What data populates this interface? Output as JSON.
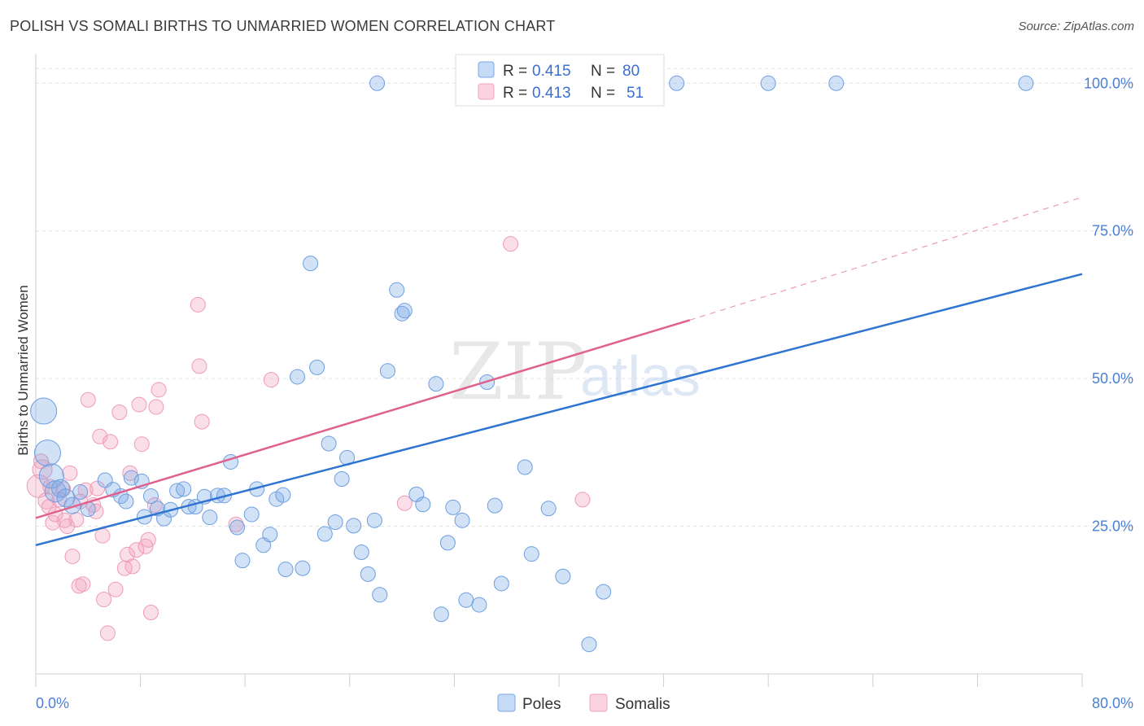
{
  "title": "POLISH VS SOMALI BIRTHS TO UNMARRIED WOMEN CORRELATION CHART",
  "source": "Source: ZipAtlas.com",
  "watermark": {
    "zip": "ZIP",
    "atlas": "atlas"
  },
  "colors": {
    "poles": "#7aaae6",
    "poles_line": "#2f74d0",
    "somalis": "#f3a3bd",
    "somalis_line": "#e0628c",
    "tick": "#4a7fd4"
  },
  "legend": {
    "rows": [
      {
        "r_label": "R = ",
        "r_value": "0.415",
        "n_label": "N = ",
        "n_value": "80"
      },
      {
        "r_label": "R = ",
        "r_value": "0.413",
        "n_label": "N = ",
        "n_value": "51"
      }
    ]
  },
  "bottom_legend": {
    "poles": "Poles",
    "somalis": "Somalis"
  },
  "chart_data": {
    "type": "scatter",
    "title": "POLISH VS SOMALI BIRTHS TO UNMARRIED WOMEN CORRELATION CHART",
    "xlabel": "",
    "ylabel": "Births to Unmarried Women",
    "xlim": [
      0,
      80
    ],
    "ylim": [
      0,
      105
    ],
    "x_tick_labels": [
      "0.0%",
      "80.0%"
    ],
    "y_ticks": [
      25,
      50,
      75,
      100
    ],
    "y_tick_labels": [
      "25.0%",
      "50.0%",
      "75.0%",
      "100.0%"
    ],
    "grid": true,
    "legend_position": "top-center",
    "series": [
      {
        "name": "Poles",
        "r": 0.415,
        "n": 80,
        "trend": {
          "x": [
            0,
            80
          ],
          "y": [
            21.8,
            67.7
          ]
        },
        "points": [
          [
            0.6,
            44.5,
            16
          ],
          [
            0.9,
            37.4,
            16
          ],
          [
            1.2,
            33.5,
            15
          ],
          [
            1.5,
            30.9,
            13
          ],
          [
            1.9,
            31.4,
            11
          ],
          [
            2.3,
            29.8,
            11
          ],
          [
            2.8,
            28.5,
            10
          ],
          [
            3.4,
            30.8,
            9
          ],
          [
            4.0,
            27.9,
            9
          ],
          [
            5.3,
            32.8,
            9
          ],
          [
            5.9,
            31.2,
            9
          ],
          [
            6.5,
            30.1,
            9
          ],
          [
            6.9,
            29.2,
            9
          ],
          [
            7.3,
            33.2,
            9
          ],
          [
            8.1,
            32.6,
            9
          ],
          [
            8.3,
            26.6,
            9
          ],
          [
            8.8,
            30.1,
            9
          ],
          [
            9.3,
            28.0,
            9
          ],
          [
            9.8,
            26.3,
            9
          ],
          [
            10.3,
            27.8,
            9
          ],
          [
            10.8,
            31.0,
            9
          ],
          [
            11.3,
            31.3,
            9
          ],
          [
            11.7,
            28.3,
            9
          ],
          [
            12.2,
            28.3,
            9
          ],
          [
            12.9,
            30.0,
            9
          ],
          [
            13.3,
            26.5,
            9
          ],
          [
            13.9,
            30.2,
            9
          ],
          [
            14.4,
            30.2,
            9
          ],
          [
            14.9,
            35.9,
            9
          ],
          [
            15.4,
            24.8,
            9
          ],
          [
            15.8,
            19.2,
            9
          ],
          [
            16.5,
            27.0,
            9
          ],
          [
            16.9,
            31.3,
            9
          ],
          [
            17.4,
            21.8,
            9
          ],
          [
            17.9,
            23.6,
            9
          ],
          [
            18.4,
            29.6,
            9
          ],
          [
            18.9,
            30.3,
            9
          ],
          [
            19.1,
            17.7,
            9
          ],
          [
            20.0,
            50.3,
            9
          ],
          [
            20.4,
            17.9,
            9
          ],
          [
            21.0,
            69.5,
            9
          ],
          [
            21.5,
            51.9,
            9
          ],
          [
            22.1,
            23.7,
            9
          ],
          [
            22.4,
            39.0,
            9
          ],
          [
            22.9,
            25.7,
            9
          ],
          [
            23.4,
            33.0,
            9
          ],
          [
            23.8,
            36.6,
            9
          ],
          [
            24.3,
            25.1,
            9
          ],
          [
            24.9,
            20.6,
            9
          ],
          [
            25.4,
            16.9,
            9
          ],
          [
            25.9,
            26.0,
            9
          ],
          [
            26.3,
            13.4,
            9
          ],
          [
            26.9,
            51.3,
            9
          ],
          [
            27.6,
            65.0,
            9
          ],
          [
            28.0,
            61.0,
            9
          ],
          [
            28.2,
            61.5,
            9
          ],
          [
            29.1,
            30.4,
            9
          ],
          [
            29.6,
            28.7,
            9
          ],
          [
            30.6,
            49.1,
            9
          ],
          [
            31.0,
            10.1,
            9
          ],
          [
            31.5,
            22.2,
            9
          ],
          [
            31.9,
            28.2,
            9
          ],
          [
            32.6,
            26.0,
            9
          ],
          [
            32.9,
            12.5,
            9
          ],
          [
            33.9,
            11.7,
            9
          ],
          [
            34.5,
            49.4,
            9
          ],
          [
            35.1,
            28.5,
            9
          ],
          [
            35.6,
            15.3,
            9
          ],
          [
            37.4,
            35.0,
            9
          ],
          [
            37.9,
            20.3,
            9
          ],
          [
            39.2,
            28.0,
            9
          ],
          [
            40.3,
            16.5,
            9
          ],
          [
            42.3,
            5.0,
            9
          ],
          [
            43.4,
            13.9,
            9
          ],
          [
            36.5,
            100.0,
            9
          ],
          [
            49.0,
            100.0,
            9
          ],
          [
            56.0,
            100.0,
            9
          ],
          [
            61.2,
            100.0,
            9
          ],
          [
            75.7,
            100.0,
            9
          ],
          [
            26.1,
            100.0,
            9
          ]
        ]
      },
      {
        "name": "Somalis",
        "r": 0.413,
        "n": 51,
        "trend": {
          "x": [
            0,
            50
          ],
          "y": [
            26.4,
            59.9
          ]
        },
        "trend_ext": {
          "x": [
            50,
            80
          ],
          "y": [
            59.9,
            80.7
          ]
        },
        "points": [
          [
            0.2,
            31.8,
            14
          ],
          [
            0.5,
            34.6,
            12
          ],
          [
            0.8,
            29.3,
            10
          ],
          [
            1.0,
            28.3,
            9
          ],
          [
            1.3,
            25.6,
            9
          ],
          [
            1.5,
            27.0,
            9
          ],
          [
            1.8,
            29.5,
            9
          ],
          [
            2.1,
            31.3,
            9
          ],
          [
            2.4,
            25.0,
            9
          ],
          [
            2.6,
            34.0,
            9
          ],
          [
            2.8,
            19.9,
            9
          ],
          [
            3.1,
            26.1,
            9
          ],
          [
            3.3,
            14.9,
            9
          ],
          [
            3.6,
            15.2,
            9
          ],
          [
            3.8,
            31.1,
            9
          ],
          [
            4.0,
            46.4,
            9
          ],
          [
            4.4,
            28.6,
            9
          ],
          [
            4.7,
            31.4,
            9
          ],
          [
            4.9,
            40.2,
            9
          ],
          [
            5.1,
            23.4,
            9
          ],
          [
            5.2,
            12.6,
            9
          ],
          [
            5.5,
            6.9,
            9
          ],
          [
            5.7,
            39.3,
            9
          ],
          [
            6.1,
            14.3,
            9
          ],
          [
            6.4,
            44.3,
            9
          ],
          [
            7.0,
            20.2,
            9
          ],
          [
            7.2,
            34.0,
            9
          ],
          [
            7.4,
            18.2,
            9
          ],
          [
            7.7,
            21.0,
            9
          ],
          [
            7.9,
            45.6,
            9
          ],
          [
            8.1,
            38.9,
            9
          ],
          [
            8.4,
            21.6,
            9
          ],
          [
            8.6,
            22.7,
            9
          ],
          [
            8.8,
            10.4,
            9
          ],
          [
            9.1,
            28.6,
            9
          ],
          [
            9.4,
            48.1,
            9
          ],
          [
            12.4,
            62.5,
            9
          ],
          [
            12.5,
            52.1,
            9
          ],
          [
            12.7,
            42.7,
            9
          ],
          [
            15.3,
            25.3,
            9
          ],
          [
            18.0,
            49.8,
            9
          ],
          [
            28.2,
            28.9,
            9
          ],
          [
            36.3,
            72.8,
            9
          ],
          [
            41.8,
            29.5,
            9
          ],
          [
            9.2,
            45.2,
            9
          ],
          [
            6.8,
            17.9,
            9
          ],
          [
            4.6,
            27.5,
            9
          ],
          [
            3.4,
            29.2,
            9
          ],
          [
            2.2,
            26.0,
            9
          ],
          [
            1.1,
            31.7,
            9
          ],
          [
            0.4,
            36.0,
            9
          ]
        ]
      }
    ]
  }
}
